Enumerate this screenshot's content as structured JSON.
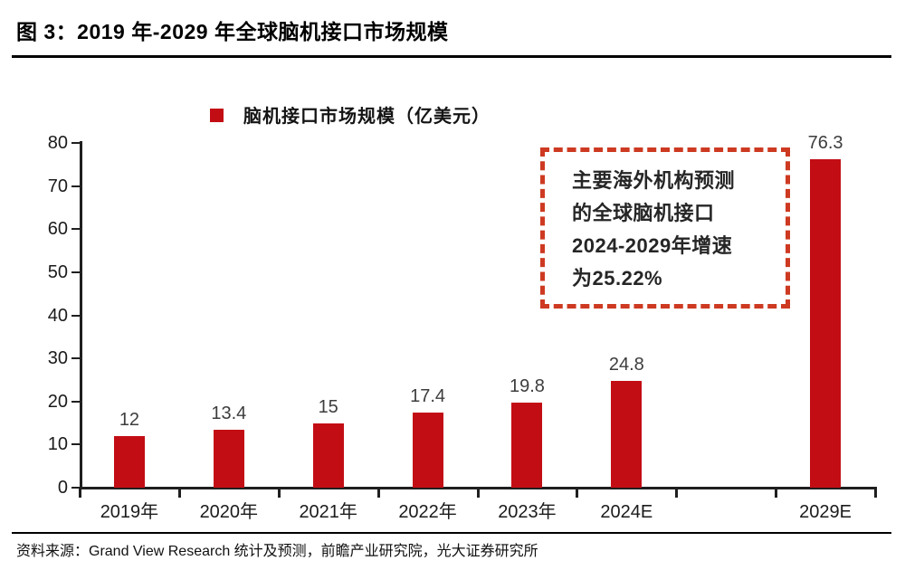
{
  "figure": {
    "title": "图 3：2019 年-2029 年全球脑机接口市场规模",
    "source": "资料来源：Grand View Research 统计及预测，前瞻产业研究院，光大证券研究所"
  },
  "legend": {
    "label": "脑机接口市场规模（亿美元）",
    "marker_color": "#c30d14"
  },
  "annotation": {
    "text": "主要海外机构预测\n的全球脑机接口\n2024-2029年增速\n为25.22%",
    "border_color": "#cd3a21",
    "growth_rate": "25.22%"
  },
  "chart_data": {
    "type": "bar",
    "categories": [
      "2019年",
      "2020年",
      "2021年",
      "2022年",
      "2023年",
      "2024E",
      "2029E"
    ],
    "values": [
      12,
      13.4,
      15,
      17.4,
      19.8,
      24.8,
      76.3
    ],
    "data_labels": [
      "12",
      "13.4",
      "15",
      "17.4",
      "19.8",
      "24.8",
      "76.3"
    ],
    "slot_indices": [
      0,
      1,
      2,
      3,
      4,
      5,
      7
    ],
    "num_slots": 8,
    "title": "",
    "xlabel": "",
    "ylabel": "",
    "ylim": [
      0,
      80
    ],
    "yticks": [
      0,
      10,
      20,
      30,
      40,
      50,
      60,
      70,
      80
    ],
    "bar_color": "#c30d14",
    "axis_color": "#1f1f1f",
    "legend_position": "top",
    "grid": false
  }
}
